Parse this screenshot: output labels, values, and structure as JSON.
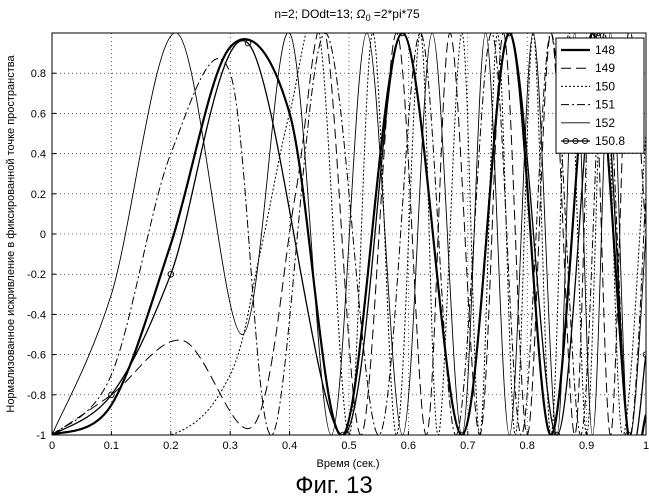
{
  "chart_data": {
    "type": "line",
    "title": "n=2; DOdt=13; Ω₀ =2*pi*75",
    "title_parts": {
      "prefix": "n=2; DOdt=13; ",
      "omega": "Ω",
      "omega_sub": "0",
      "suffix": " =2*pi*75"
    },
    "xlabel": "Время (сек.)",
    "ylabel": "Нормализованное искривление в фиксированной точке пространства",
    "caption": "Фиг. 13",
    "xlim": [
      0,
      1
    ],
    "ylim": [
      -1,
      1
    ],
    "x_ticks": [
      "0",
      "0.1",
      "0.2",
      "0.3",
      "0.4",
      "0.5",
      "0.6",
      "0.7",
      "0.8",
      "0.9",
      "1"
    ],
    "y_ticks": [
      "-1",
      "-0.8",
      "-0.6",
      "-0.4",
      "-0.2",
      "0",
      "0.2",
      "0.4",
      "0.6",
      "0.8"
    ],
    "legend_position": "top-right",
    "series": [
      {
        "name": "148",
        "style": "thick-solid",
        "x": [
          0,
          0.1,
          0.2,
          0.3,
          0.4,
          0.49,
          0.59,
          0.69,
          0.77,
          0.84,
          0.91,
          0.97,
          1.0
        ],
        "y": [
          -1,
          -0.85,
          -0.05,
          0.93,
          0.6,
          -1,
          1,
          -1,
          1,
          -1,
          1,
          -1,
          -0.9
        ]
      },
      {
        "name": "149",
        "style": "long-dash",
        "x": [
          0,
          0.1,
          0.22,
          0.34,
          0.41,
          0.46,
          0.52,
          0.58,
          0.63,
          0.67,
          0.72,
          0.76,
          0.8,
          0.84,
          0.88,
          0.91,
          0.94,
          0.97,
          1.0
        ],
        "y": [
          -1,
          -0.8,
          -0.53,
          -0.95,
          0.2,
          1,
          -1,
          1,
          -1,
          1,
          -1,
          1,
          -1,
          1,
          -1,
          1,
          -1,
          1,
          0
        ]
      },
      {
        "name": "150",
        "style": "dotted",
        "x": [
          0,
          0.2,
          0.3,
          0.35,
          0.4,
          0.45,
          0.5,
          0.54,
          0.58,
          0.62,
          0.65,
          0.69,
          0.72,
          0.75,
          0.78,
          0.81,
          0.84,
          0.87,
          0.9,
          0.93,
          0.96,
          1.0
        ],
        "y": [
          -1,
          -1,
          -0.7,
          -0.1,
          0.6,
          1,
          -1,
          1,
          -1,
          1,
          -1,
          1,
          -1,
          1,
          -1,
          1,
          -1,
          1,
          -1,
          1,
          -1,
          0.5
        ]
      },
      {
        "name": "151",
        "style": "dash-dot",
        "x": [
          0,
          0.1,
          0.2,
          0.3,
          0.37,
          0.46,
          0.55,
          0.62,
          0.68,
          0.74,
          0.79,
          0.84,
          0.89,
          0.93,
          0.97,
          1.0
        ],
        "y": [
          -1,
          -0.7,
          0.4,
          0.8,
          -1,
          1,
          -1,
          1,
          -1,
          1,
          -1,
          1,
          -1,
          1,
          -1,
          0.2
        ]
      },
      {
        "name": "152",
        "style": "thin-solid",
        "x": [
          0,
          0.1,
          0.21,
          0.32,
          0.4,
          0.47,
          0.53,
          0.59,
          0.64,
          0.69,
          0.73,
          0.77,
          0.81,
          0.85,
          0.88,
          0.91,
          0.94,
          0.97,
          1.0
        ],
        "y": [
          -1,
          -0.3,
          1,
          -0.5,
          1,
          -1,
          1,
          -1,
          1,
          -1,
          1,
          -1,
          1,
          -1,
          1,
          -1,
          1,
          -1,
          0
        ]
      },
      {
        "name": "150.8",
        "style": "solid-circles",
        "x": [
          0,
          0.1,
          0.2,
          0.33,
          0.49,
          0.59,
          0.69,
          0.77,
          0.85,
          0.92,
          0.97,
          1.0
        ],
        "y": [
          -1,
          -0.8,
          -0.2,
          0.95,
          -1,
          1,
          -1,
          1,
          -1,
          1,
          -1,
          -0.6
        ]
      }
    ]
  },
  "colors": {
    "line": "#000000",
    "background": "#ffffff"
  }
}
